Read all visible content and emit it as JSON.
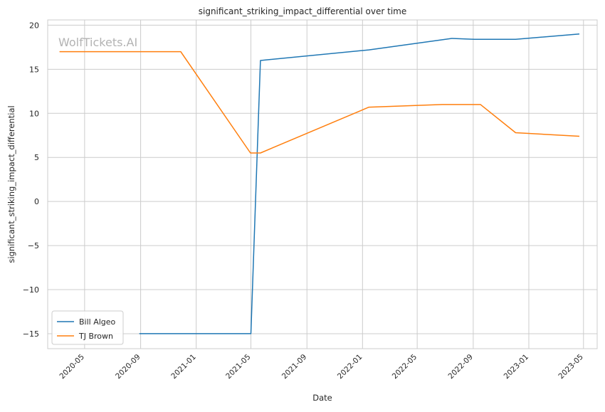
{
  "chart_data": {
    "type": "line",
    "title": "significant_striking_impact_differential over time",
    "xlabel": "Date",
    "ylabel": "significant_striking_impact_differential",
    "watermark": "WolfTickets.AI",
    "x_ticks": [
      "2020-05",
      "2020-09",
      "2021-01",
      "2021-05",
      "2021-09",
      "2022-01",
      "2022-05",
      "2022-09",
      "2023-01",
      "2023-05"
    ],
    "y_ticks": [
      20,
      15,
      10,
      5,
      0,
      -5,
      -10,
      -15
    ],
    "y_tick_labels": [
      "20",
      "15",
      "10",
      "5",
      "0",
      "−5",
      "−10",
      "−15"
    ],
    "xlim": [
      "2020-02-10",
      "2023-05-31"
    ],
    "ylim": [
      -16.7,
      20.6
    ],
    "grid": true,
    "legend_position": "lower-left",
    "series": [
      {
        "name": "Bill Algeo",
        "color": "#1f77b4",
        "points": [
          [
            "2020-08-29",
            -15
          ],
          [
            "2021-05-01",
            -15
          ],
          [
            "2021-05-22",
            16.0
          ],
          [
            "2022-01-15",
            17.2
          ],
          [
            "2022-07-16",
            18.5
          ],
          [
            "2022-09-03",
            18.4
          ],
          [
            "2022-12-03",
            18.4
          ],
          [
            "2023-04-22",
            19.0
          ]
        ]
      },
      {
        "name": "TJ Brown",
        "color": "#ff7f0e",
        "points": [
          [
            "2020-03-07",
            17.0
          ],
          [
            "2020-11-28",
            17.0
          ],
          [
            "2021-04-30",
            5.5
          ],
          [
            "2021-05-22",
            5.5
          ],
          [
            "2022-01-15",
            10.7
          ],
          [
            "2022-06-25",
            11.0
          ],
          [
            "2022-09-17",
            11.0
          ],
          [
            "2022-12-03",
            7.8
          ],
          [
            "2023-04-22",
            7.4
          ]
        ]
      }
    ]
  }
}
